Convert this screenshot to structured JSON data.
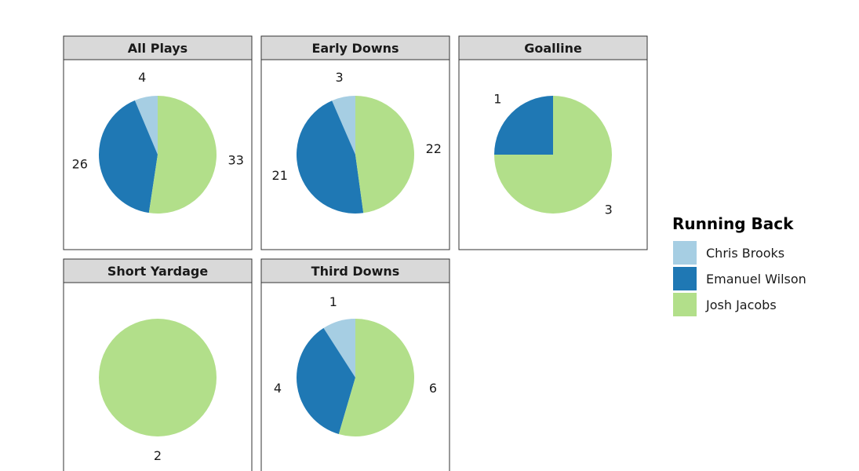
{
  "chart_data": {
    "type": "pie",
    "title": "",
    "legend": {
      "title": "Running Back",
      "placement": "right",
      "entries": [
        {
          "name": "Chris Brooks",
          "color": "#a6cee3"
        },
        {
          "name": "Emanuel Wilson",
          "color": "#1f78b4"
        },
        {
          "name": "Josh Jacobs",
          "color": "#b2df8a"
        }
      ]
    },
    "facets": [
      {
        "label": "All Plays",
        "slices": [
          {
            "name": "Chris Brooks",
            "value": 4
          },
          {
            "name": "Emanuel Wilson",
            "value": 26
          },
          {
            "name": "Josh Jacobs",
            "value": 33
          }
        ]
      },
      {
        "label": "Early Downs",
        "slices": [
          {
            "name": "Chris Brooks",
            "value": 3
          },
          {
            "name": "Emanuel Wilson",
            "value": 21
          },
          {
            "name": "Josh Jacobs",
            "value": 22
          }
        ]
      },
      {
        "label": "Goalline",
        "slices": [
          {
            "name": "Emanuel Wilson",
            "value": 1
          },
          {
            "name": "Josh Jacobs",
            "value": 3
          }
        ]
      },
      {
        "label": "Short Yardage",
        "slices": [
          {
            "name": "Josh Jacobs",
            "value": 2
          }
        ]
      },
      {
        "label": "Third Downs",
        "slices": [
          {
            "name": "Chris Brooks",
            "value": 1
          },
          {
            "name": "Emanuel Wilson",
            "value": 4
          },
          {
            "name": "Josh Jacobs",
            "value": 6
          }
        ]
      }
    ]
  }
}
